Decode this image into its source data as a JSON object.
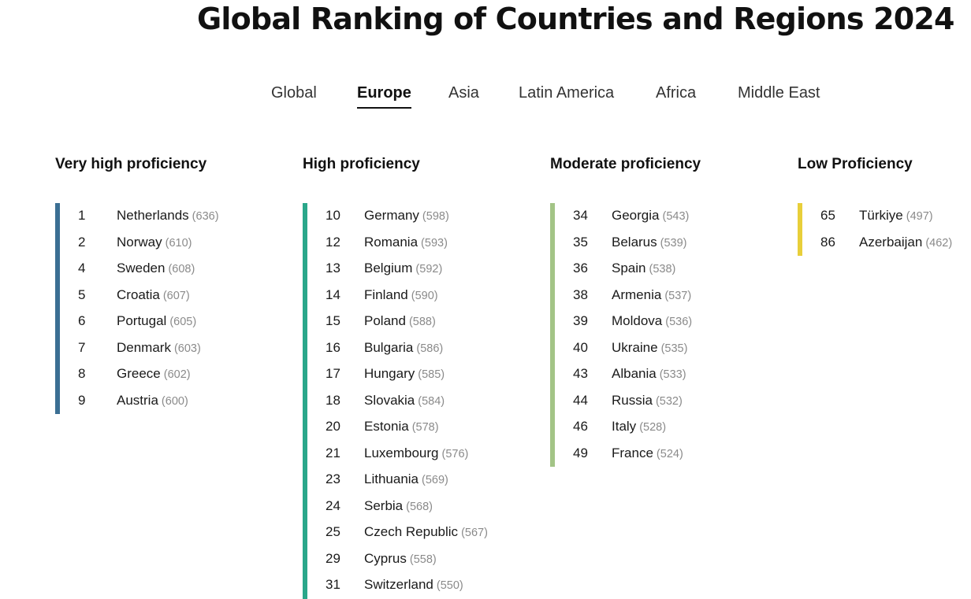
{
  "title": "Global Ranking of Countries and Regions 2024",
  "tabs": [
    {
      "label": "Global"
    },
    {
      "label": "Europe"
    },
    {
      "label": "Asia"
    },
    {
      "label": "Latin America"
    },
    {
      "label": "Africa"
    },
    {
      "label": "Middle East"
    }
  ],
  "active_tab": "Europe",
  "colors": {
    "very_high": "#3b6f93",
    "high": "#2aa78a",
    "moderate": "#a3c486",
    "low": "#e8cf3a"
  },
  "columns": [
    {
      "heading": "Very high proficiency",
      "rows": [
        {
          "rank": "1",
          "country": "Netherlands",
          "score": "(636)"
        },
        {
          "rank": "2",
          "country": "Norway",
          "score": "(610)"
        },
        {
          "rank": "4",
          "country": "Sweden",
          "score": "(608)"
        },
        {
          "rank": "5",
          "country": "Croatia",
          "score": "(607)"
        },
        {
          "rank": "6",
          "country": "Portugal",
          "score": "(605)"
        },
        {
          "rank": "7",
          "country": "Denmark",
          "score": "(603)"
        },
        {
          "rank": "8",
          "country": "Greece",
          "score": "(602)"
        },
        {
          "rank": "9",
          "country": "Austria",
          "score": "(600)"
        }
      ]
    },
    {
      "heading": "High proficiency",
      "rows": [
        {
          "rank": "10",
          "country": "Germany",
          "score": "(598)"
        },
        {
          "rank": "12",
          "country": "Romania",
          "score": "(593)"
        },
        {
          "rank": "13",
          "country": "Belgium",
          "score": "(592)"
        },
        {
          "rank": "14",
          "country": "Finland",
          "score": "(590)"
        },
        {
          "rank": "15",
          "country": "Poland",
          "score": "(588)"
        },
        {
          "rank": "16",
          "country": "Bulgaria",
          "score": "(586)"
        },
        {
          "rank": "17",
          "country": "Hungary",
          "score": "(585)"
        },
        {
          "rank": "18",
          "country": "Slovakia",
          "score": "(584)"
        },
        {
          "rank": "20",
          "country": "Estonia",
          "score": "(578)"
        },
        {
          "rank": "21",
          "country": "Luxembourg",
          "score": "(576)"
        },
        {
          "rank": "23",
          "country": "Lithuania",
          "score": "(569)"
        },
        {
          "rank": "24",
          "country": "Serbia",
          "score": "(568)"
        },
        {
          "rank": "25",
          "country": "Czech Republic",
          "score": "(567)"
        },
        {
          "rank": "29",
          "country": "Cyprus",
          "score": "(558)"
        },
        {
          "rank": "31",
          "country": "Switzerland",
          "score": "(550)"
        }
      ]
    },
    {
      "heading": "Moderate proficiency",
      "rows": [
        {
          "rank": "34",
          "country": "Georgia",
          "score": "(543)"
        },
        {
          "rank": "35",
          "country": "Belarus",
          "score": "(539)"
        },
        {
          "rank": "36",
          "country": "Spain",
          "score": "(538)"
        },
        {
          "rank": "38",
          "country": "Armenia",
          "score": "(537)"
        },
        {
          "rank": "39",
          "country": "Moldova",
          "score": "(536)"
        },
        {
          "rank": "40",
          "country": "Ukraine",
          "score": "(535)"
        },
        {
          "rank": "43",
          "country": "Albania",
          "score": "(533)"
        },
        {
          "rank": "44",
          "country": "Russia",
          "score": "(532)"
        },
        {
          "rank": "46",
          "country": "Italy",
          "score": "(528)"
        },
        {
          "rank": "49",
          "country": "France",
          "score": "(524)"
        }
      ]
    },
    {
      "heading": "Low Proficiency",
      "rows": [
        {
          "rank": "65",
          "country": "Türkiye",
          "score": "(497)"
        },
        {
          "rank": "86",
          "country": "Azerbaijan",
          "score": "(462)"
        }
      ]
    }
  ]
}
